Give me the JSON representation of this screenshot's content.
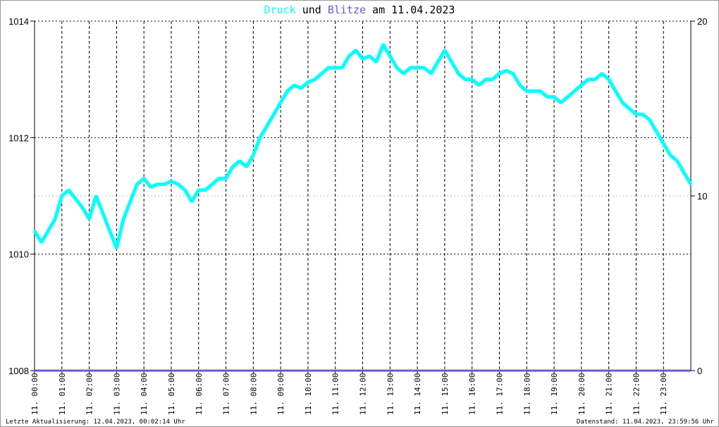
{
  "title": {
    "part1": "Druck",
    "part2": " und ",
    "part3": "Blitze",
    "part4": " am 11.04.2023"
  },
  "footer": {
    "left": "Letzte Aktualisierung: 12.04.2023, 00:02:14 Uhr",
    "right": "Datenstand: 11.04.2023, 23:59:56 Uhr"
  },
  "colors": {
    "druck": "#00ffff",
    "blitze": "#6a5acd"
  },
  "chart_data": {
    "type": "line",
    "title": "Druck und Blitze am 11.04.2023",
    "grid": true,
    "ylim": [
      1008,
      1014
    ],
    "y2lim": [
      0,
      20
    ],
    "yticks": [
      "1008",
      "1010",
      "1012",
      "1014"
    ],
    "y2ticks": [
      "0",
      "10",
      "20"
    ],
    "xticks": [
      "11. 00:00",
      "11. 01:00",
      "11. 02:00",
      "11. 03:00",
      "11. 04:00",
      "11. 05:00",
      "11. 06:00",
      "11. 07:00",
      "11. 08:00",
      "11. 09:00",
      "11. 10:00",
      "11. 11:00",
      "11. 12:00",
      "11. 13:00",
      "11. 14:00",
      "11. 15:00",
      "11. 16:00",
      "11. 17:00",
      "11. 18:00",
      "11. 19:00",
      "11. 20:00",
      "11. 21:00",
      "11. 22:00",
      "11. 23:00"
    ],
    "x_interval_minutes": 15,
    "series": [
      {
        "name": "Druck",
        "axis": "left",
        "values": [
          1010.4,
          1010.2,
          1010.4,
          1010.6,
          1011.0,
          1011.1,
          1010.95,
          1010.8,
          1010.6,
          1011.0,
          1010.7,
          1010.4,
          1010.1,
          1010.6,
          1010.9,
          1011.2,
          1011.3,
          1011.15,
          1011.2,
          1011.2,
          1011.25,
          1011.2,
          1011.1,
          1010.9,
          1011.1,
          1011.1,
          1011.2,
          1011.3,
          1011.3,
          1011.5,
          1011.6,
          1011.5,
          1011.7,
          1012.0,
          1012.2,
          1012.4,
          1012.6,
          1012.8,
          1012.9,
          1012.85,
          1012.95,
          1013.0,
          1013.1,
          1013.2,
          1013.2,
          1013.2,
          1013.4,
          1013.5,
          1013.35,
          1013.4,
          1013.3,
          1013.6,
          1013.4,
          1013.2,
          1013.1,
          1013.2,
          1013.2,
          1013.2,
          1013.1,
          1013.3,
          1013.5,
          1013.3,
          1013.1,
          1013.0,
          1013.0,
          1012.9,
          1013.0,
          1013.0,
          1013.1,
          1013.15,
          1013.1,
          1012.9,
          1012.8,
          1012.8,
          1012.8,
          1012.7,
          1012.7,
          1012.6,
          1012.7,
          1012.8,
          1012.9,
          1013.0,
          1013.0,
          1013.1,
          1013.0,
          1012.8,
          1012.6,
          1012.5,
          1012.4,
          1012.4,
          1012.3,
          1012.1,
          1011.9,
          1011.7,
          1011.6,
          1011.4,
          1011.2
        ]
      },
      {
        "name": "Blitze",
        "axis": "right",
        "values": [
          0,
          0
        ]
      }
    ]
  }
}
